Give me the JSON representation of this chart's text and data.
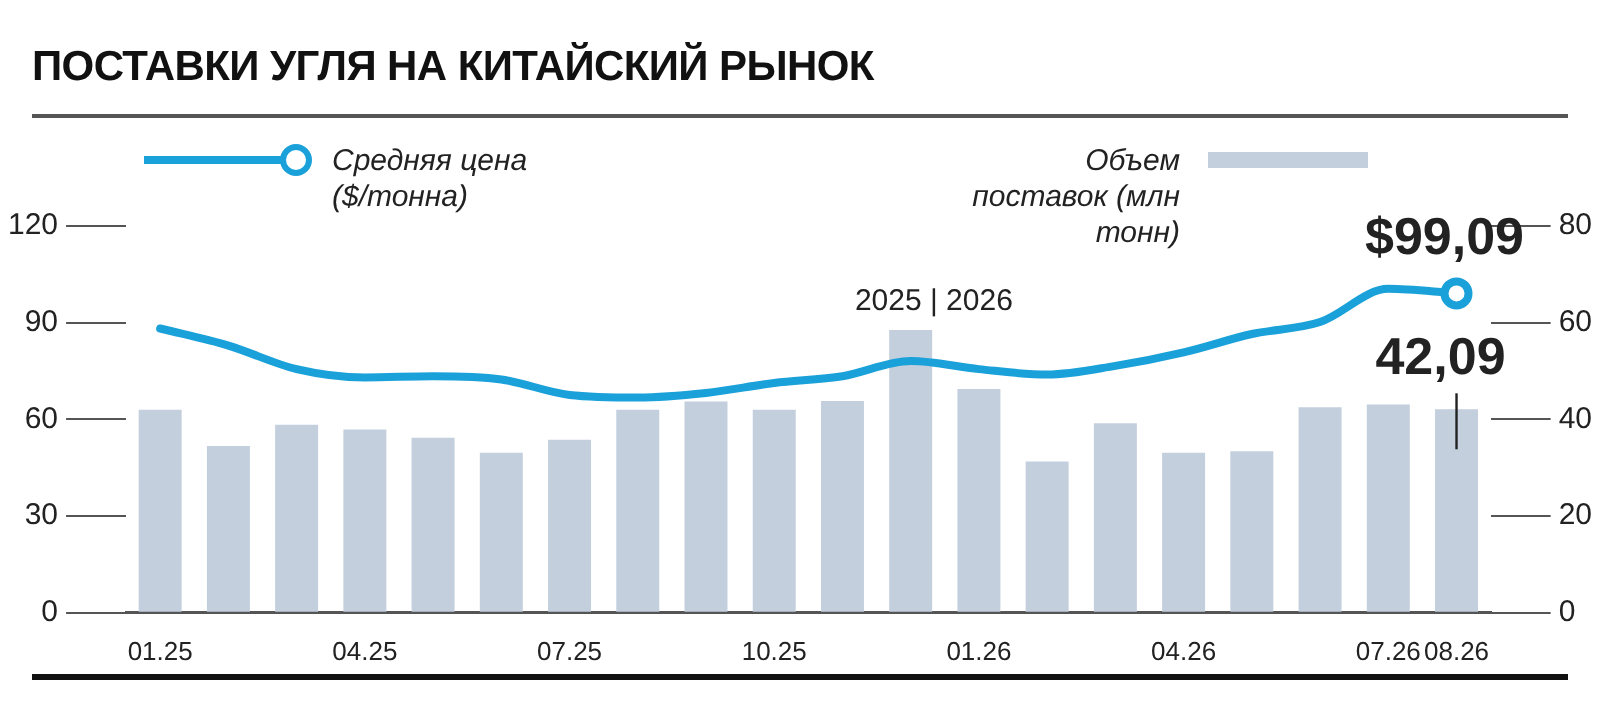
{
  "chart_data": {
    "type": "bar",
    "title": "ПОСТАВКИ УГЛЯ НА КИТАЙСКИЙ РЫНОК",
    "categories": [
      "01.25",
      null,
      null,
      "04.25",
      null,
      null,
      "07.25",
      null,
      null,
      "10.25",
      null,
      null,
      "01.26",
      null,
      null,
      "04.26",
      null,
      null,
      "07.26",
      "08.26"
    ],
    "series": [
      {
        "name": "Средняя цена ($/тонна)",
        "type": "line",
        "color": "#1ba1d9",
        "values": [
          88.2,
          82.9,
          75.6,
          73.0,
          73.4,
          72.4,
          67.6,
          66.8,
          68.2,
          71.3,
          73.4,
          78.1,
          75.6,
          73.9,
          76.6,
          80.8,
          86.5,
          90.2,
          100.5,
          99.09
        ],
        "value_labels": [
          null,
          null,
          null,
          null,
          null,
          null,
          null,
          null,
          null,
          null,
          null,
          null,
          null,
          null,
          null,
          null,
          null,
          null,
          null,
          "$99,09"
        ]
      },
      {
        "name": "Объем поставок (млн тонн)",
        "axis": "y2",
        "color": "#c3cfdd",
        "values": [
          42.0,
          34.5,
          38.9,
          37.9,
          36.2,
          33.1,
          35.8,
          42.0,
          43.7,
          42.0,
          43.8,
          58.5,
          46.3,
          31.3,
          39.2,
          33.1,
          33.4,
          42.5,
          43.1,
          42.09
        ],
        "value_labels": [
          null,
          null,
          null,
          null,
          null,
          null,
          null,
          null,
          null,
          null,
          null,
          null,
          null,
          null,
          null,
          null,
          null,
          null,
          null,
          "42,09"
        ]
      }
    ],
    "ylim": [
      0,
      120
    ],
    "yticks": [
      0,
      30,
      60,
      90,
      120
    ],
    "y2lim": [
      0,
      80
    ],
    "y2ticks": [
      0,
      20,
      40,
      60,
      80
    ],
    "annotations": [
      "2025 | 2026"
    ],
    "legend": "top",
    "grid": false
  }
}
